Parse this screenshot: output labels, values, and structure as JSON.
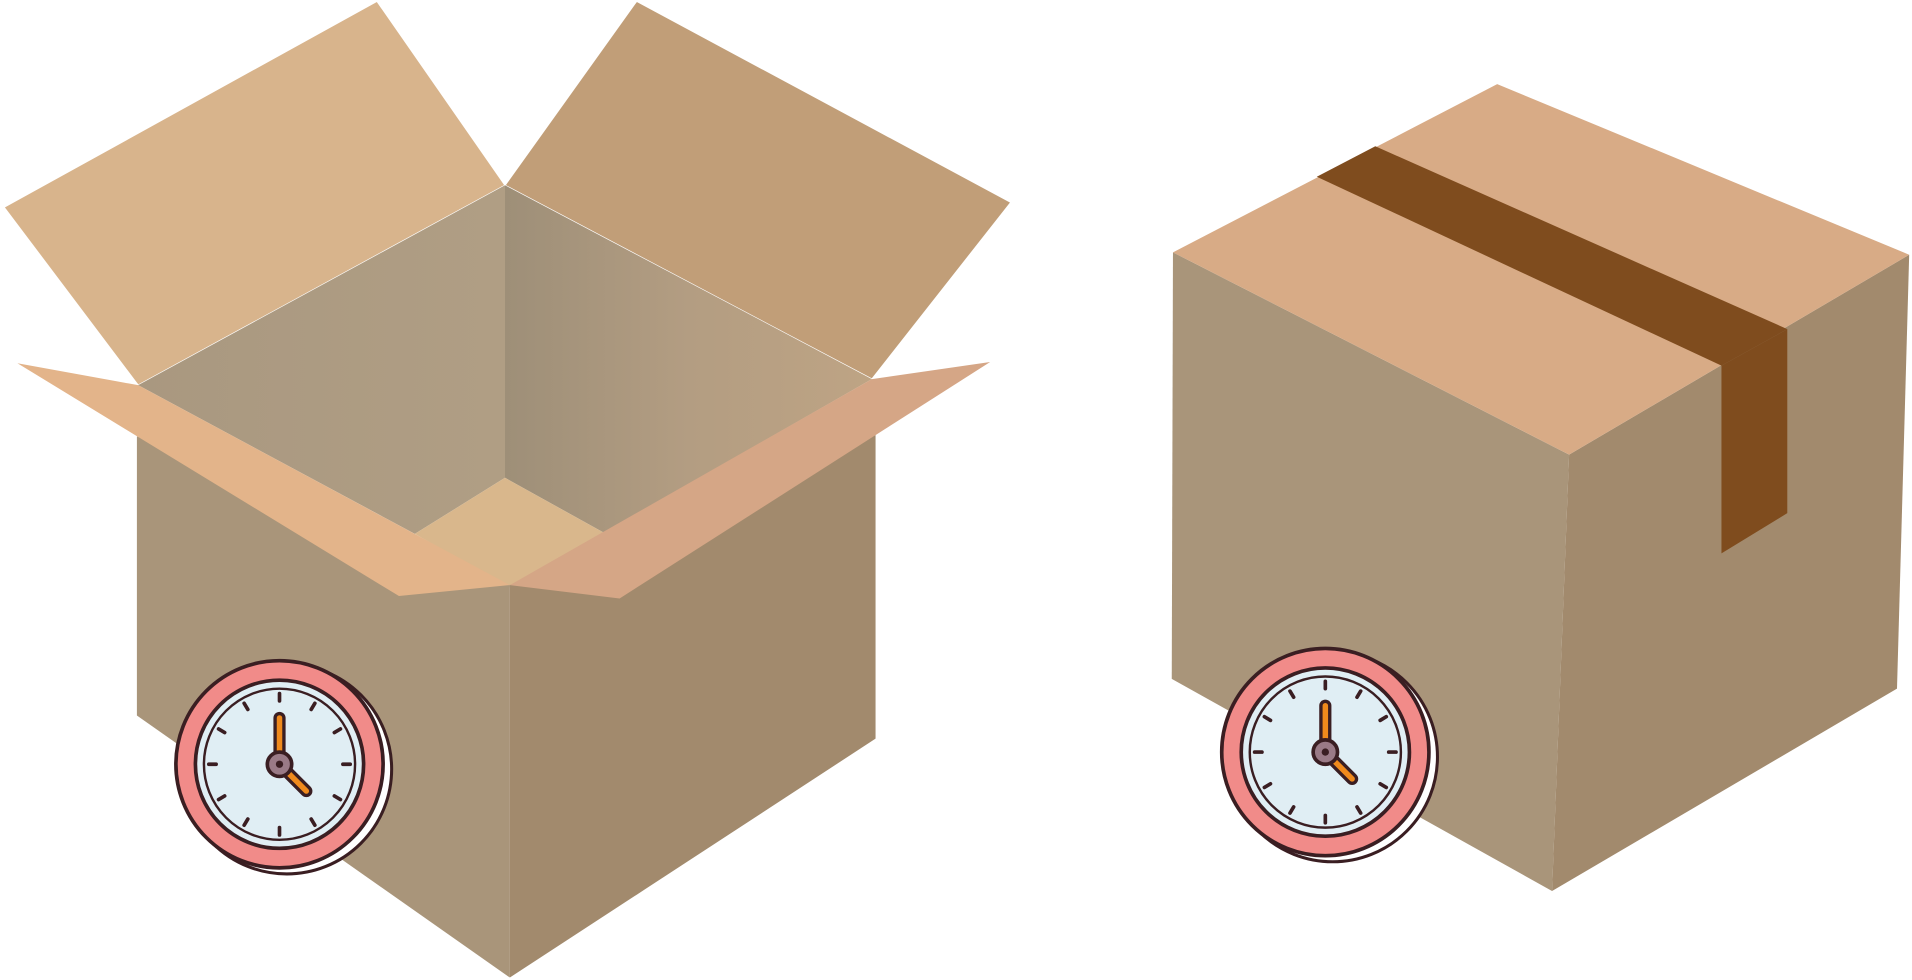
{
  "colors": {
    "background": "#ffffff",
    "cardboard_flap_light": "#d8b48c",
    "cardboard_flap_mid": "#c19e78",
    "cardboard_interior_left": "#ad9b80",
    "cardboard_interior_right": "#b59e80",
    "cardboard_interior_floor": "#d9b78c",
    "cardboard_front_flap_left": "#e3b48a",
    "cardboard_front_flap_right": "#d5a686",
    "cardboard_side_left": "#a9957a",
    "cardboard_side_right": "#a28a6d",
    "closed_box_top": "#d8ab86",
    "packing_tape": "#7f4c1e",
    "clock_ring": "#f18b89",
    "clock_face": "#e0eef4",
    "clock_outline": "#3a1e22",
    "clock_hand": "#f08a1c",
    "clock_pivot": "#9a7a86"
  },
  "icons": {
    "open_box": "open-box",
    "closed_box": "closed-box",
    "clock": "clock-icon",
    "tape": "packing-tape"
  }
}
